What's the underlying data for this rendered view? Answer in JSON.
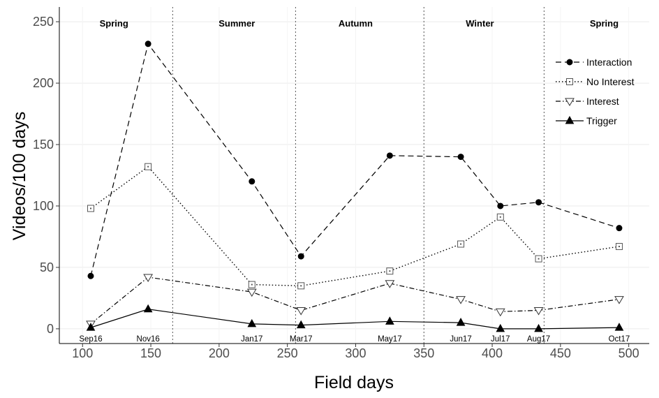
{
  "chart_data": {
    "type": "line",
    "title": "",
    "xlabel": "Field days",
    "ylabel": "Videos/100 days",
    "xlim": [
      83,
      515
    ],
    "ylim": [
      -12,
      262
    ],
    "x_ticks": [
      100,
      150,
      200,
      250,
      300,
      350,
      400,
      450,
      500
    ],
    "y_ticks": [
      0,
      50,
      100,
      150,
      200,
      250
    ],
    "grid": true,
    "legend_position": "top-right",
    "x": [
      106,
      148,
      224,
      260,
      325,
      377,
      406,
      434,
      493
    ],
    "point_labels": [
      "Sep16",
      "Nov16",
      "Jan17",
      "Mar17",
      "May17",
      "Jun17",
      "Jul17",
      "Aug17",
      "Oct17"
    ],
    "season_boundaries": [
      166,
      256,
      350,
      438
    ],
    "seasons": [
      {
        "label": "Spring",
        "x": 123
      },
      {
        "label": "Summer",
        "x": 213
      },
      {
        "label": "Autumn",
        "x": 300
      },
      {
        "label": "Winter",
        "x": 391
      },
      {
        "label": "Spring",
        "x": 482
      }
    ],
    "series": [
      {
        "name": "Interaction",
        "marker": "filled-circle",
        "line": "dashed",
        "values": [
          43,
          232,
          120,
          59,
          141,
          140,
          100,
          103,
          82
        ]
      },
      {
        "name": "No Interest",
        "marker": "square-dot",
        "line": "dotted",
        "values": [
          98,
          132,
          36,
          35,
          47,
          69,
          91,
          57,
          67
        ]
      },
      {
        "name": "Interest",
        "marker": "open-triangle-down",
        "line": "dashdot",
        "values": [
          4,
          42,
          30,
          15,
          37,
          24,
          14,
          15,
          24
        ]
      },
      {
        "name": "Trigger",
        "marker": "filled-triangle-up",
        "line": "solid",
        "values": [
          1,
          16,
          4,
          3,
          6,
          5,
          0,
          0,
          1
        ]
      }
    ]
  }
}
